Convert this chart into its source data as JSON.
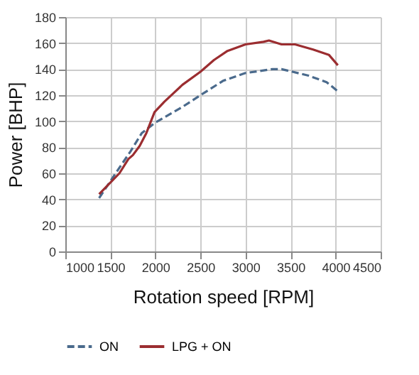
{
  "chart_data": {
    "type": "line",
    "xlabel": "Rotation speed [RPM]",
    "ylabel": "Power [BHP]",
    "xlim": [
      1000,
      4500
    ],
    "xticks": [
      1000,
      1500,
      2000,
      2500,
      3000,
      3500,
      4000,
      4500
    ],
    "ylim": [
      0,
      180
    ],
    "yticks": [
      0,
      20,
      40,
      60,
      80,
      100,
      120,
      140,
      160,
      180
    ],
    "grid": true,
    "legend": "bottom",
    "marker": "none",
    "series": [
      {
        "name": "ON",
        "color": "#4a6a8c",
        "line_style": "dashed",
        "x": [
          1375,
          1500,
          1725,
          1850,
          2000,
          2300,
          2500,
          2750,
          3000,
          3300,
          3400,
          3700,
          3900,
          4025
        ],
        "values": [
          41,
          54,
          77,
          91,
          99,
          111,
          120,
          131,
          137,
          140,
          140,
          135,
          130,
          123
        ]
      },
      {
        "name": "LPG + ON",
        "color": "#9b2d30",
        "line_style": "solid",
        "x": [
          1375,
          1600,
          1700,
          1750,
          1825,
          1900,
          1990,
          2100,
          2300,
          2500,
          2650,
          2800,
          3000,
          3200,
          3260,
          3400,
          3550,
          3750,
          3925,
          4025
        ],
        "values": [
          44,
          60,
          71,
          74,
          81,
          91,
          107,
          115,
          128,
          138,
          147,
          154,
          159,
          161,
          162,
          159,
          159,
          155,
          151,
          143
        ]
      }
    ]
  }
}
